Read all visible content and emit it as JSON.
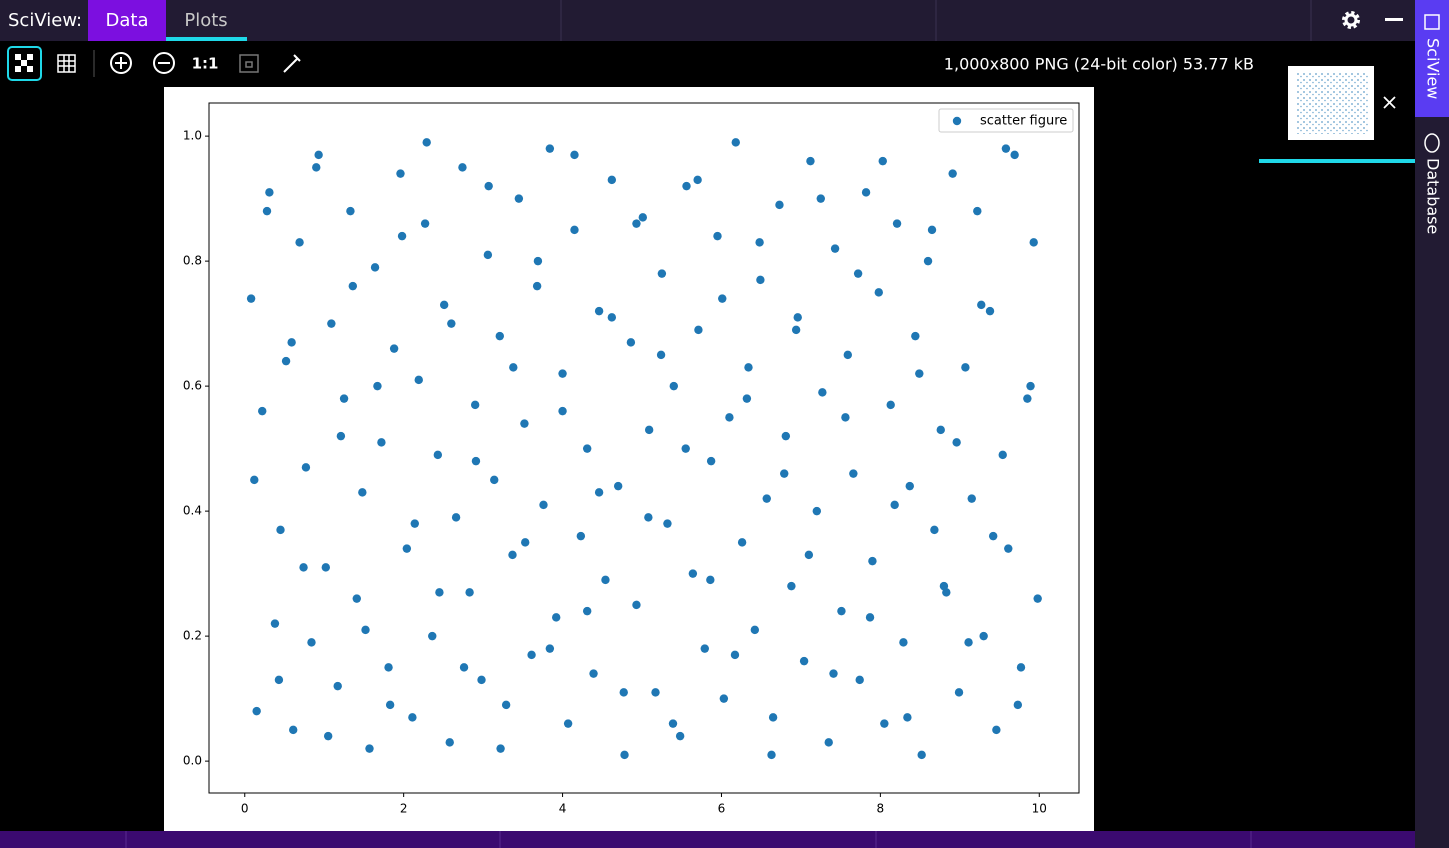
{
  "app": {
    "label": "SciView:",
    "tabs": [
      "Data",
      "Plots"
    ],
    "side_tabs": [
      "SciView",
      "Database"
    ]
  },
  "toolbar": {
    "zoom_label": "1:1"
  },
  "image_info": "1,000x800 PNG (24-bit color) 53.77 kB",
  "chart_data": {
    "type": "scatter",
    "legend": "upper right",
    "grid": false,
    "xlim": [
      -0.45,
      10.5
    ],
    "ylim": [
      -0.051,
      1.053
    ],
    "xticks": [
      0,
      2,
      4,
      6,
      8,
      10
    ],
    "yticks": [
      {
        "value": 0,
        "label": "0.0"
      },
      {
        "value": 0.2,
        "label": "0.2"
      },
      {
        "value": 0.4,
        "label": "0.4"
      },
      {
        "value": 0.6,
        "label": "0.6"
      },
      {
        "value": 0.8,
        "label": "0.8"
      },
      {
        "value": 1,
        "label": "1.0"
      }
    ],
    "series": [
      {
        "name": "scatter figure",
        "color": "#1f77b4",
        "x": [
          0.08,
          0.15,
          0.22,
          0.31,
          0.38,
          0.45,
          0.52,
          0.61,
          0.69,
          0.77,
          0.84,
          0.93,
          1.02,
          1.09,
          1.17,
          1.25,
          1.33,
          1.41,
          1.48,
          1.57,
          1.64,
          1.72,
          1.81,
          1.88,
          1.96,
          2.04,
          2.11,
          2.19,
          2.27,
          2.36,
          2.43,
          2.51,
          2.58,
          2.66,
          2.74,
          2.83,
          2.9,
          2.98,
          3.06,
          3.14,
          3.21,
          3.29,
          3.37,
          3.45,
          3.52,
          3.61,
          3.68,
          3.76,
          3.84,
          3.92,
          4.0,
          4.07,
          4.15,
          4.23,
          4.31,
          4.39,
          4.46,
          4.54,
          4.62,
          4.7,
          4.78,
          4.86,
          4.93,
          5.01,
          5.09,
          5.17,
          5.25,
          5.32,
          5.4,
          5.48,
          5.56,
          5.64,
          5.71,
          5.79,
          5.87,
          5.95,
          6.03,
          6.1,
          6.18,
          6.26,
          6.34,
          6.42,
          6.49,
          6.57,
          6.65,
          6.73,
          6.81,
          6.88,
          6.96,
          7.04,
          7.12,
          7.2,
          7.27,
          7.35,
          7.43,
          7.51,
          7.59,
          7.66,
          7.74,
          7.82,
          7.9,
          7.98,
          8.05,
          8.13,
          8.21,
          8.29,
          8.37,
          8.44,
          8.52,
          8.6,
          8.68,
          8.76,
          8.83,
          8.91,
          8.99,
          9.07,
          9.15,
          9.22,
          9.3,
          9.38,
          9.46,
          9.54,
          9.61,
          9.69,
          9.77,
          9.85,
          9.93,
          9.98,
          0.12,
          0.28,
          0.43,
          0.59,
          0.74,
          0.9,
          1.05,
          1.21,
          1.36,
          1.52,
          1.67,
          1.83,
          1.98,
          2.14,
          2.29,
          2.45,
          2.6,
          2.76,
          2.91,
          3.07,
          3.22,
          3.38,
          3.53,
          3.69,
          3.84,
          4.0,
          4.15,
          4.31,
          4.46,
          4.62,
          4.77,
          4.93,
          5.08,
          5.24,
          5.39,
          5.55,
          5.7,
          5.86,
          6.01,
          6.17,
          6.32,
          6.48,
          6.63,
          6.79,
          6.94,
          7.1,
          7.25,
          7.41,
          7.56,
          7.72,
          7.87,
          8.03,
          8.18,
          8.34,
          8.49,
          8.65,
          8.8,
          8.96,
          9.11,
          9.27,
          9.42,
          9.58,
          9.73,
          9.89
        ],
        "values": [
          0.74,
          0.08,
          0.56,
          0.91,
          0.22,
          0.37,
          0.64,
          0.05,
          0.83,
          0.47,
          0.19,
          0.97,
          0.31,
          0.7,
          0.12,
          0.58,
          0.88,
          0.26,
          0.43,
          0.02,
          0.79,
          0.51,
          0.15,
          0.66,
          0.94,
          0.34,
          0.07,
          0.61,
          0.86,
          0.2,
          0.49,
          0.73,
          0.03,
          0.39,
          0.95,
          0.27,
          0.57,
          0.13,
          0.81,
          0.45,
          0.68,
          0.09,
          0.33,
          0.9,
          0.54,
          0.17,
          0.76,
          0.41,
          0.98,
          0.23,
          0.62,
          0.06,
          0.85,
          0.36,
          0.5,
          0.14,
          0.72,
          0.29,
          0.93,
          0.44,
          0.01,
          0.67,
          0.25,
          0.87,
          0.53,
          0.11,
          0.78,
          0.38,
          0.6,
          0.04,
          0.92,
          0.3,
          0.69,
          0.18,
          0.48,
          0.84,
          0.1,
          0.55,
          0.99,
          0.35,
          0.63,
          0.21,
          0.77,
          0.42,
          0.07,
          0.89,
          0.52,
          0.28,
          0.71,
          0.16,
          0.96,
          0.4,
          0.59,
          0.03,
          0.82,
          0.24,
          0.65,
          0.46,
          0.13,
          0.91,
          0.32,
          0.75,
          0.06,
          0.57,
          0.86,
          0.19,
          0.44,
          0.68,
          0.01,
          0.8,
          0.37,
          0.53,
          0.27,
          0.94,
          0.11,
          0.63,
          0.42,
          0.88,
          0.2,
          0.72,
          0.05,
          0.49,
          0.34,
          0.97,
          0.15,
          0.58,
          0.83,
          0.26,
          0.45,
          0.88,
          0.13,
          0.67,
          0.31,
          0.95,
          0.04,
          0.52,
          0.76,
          0.21,
          0.6,
          0.09,
          0.84,
          0.38,
          0.99,
          0.27,
          0.7,
          0.15,
          0.48,
          0.92,
          0.02,
          0.63,
          0.35,
          0.8,
          0.18,
          0.56,
          0.97,
          0.24,
          0.43,
          0.71,
          0.11,
          0.86,
          0.39,
          0.65,
          0.06,
          0.5,
          0.93,
          0.29,
          0.74,
          0.17,
          0.58,
          0.83,
          0.01,
          0.46,
          0.69,
          0.33,
          0.9,
          0.14,
          0.55,
          0.78,
          0.23,
          0.96,
          0.41,
          0.07,
          0.62,
          0.85,
          0.28,
          0.51,
          0.19,
          0.73,
          0.36,
          0.98,
          0.09,
          0.6
        ]
      }
    ]
  }
}
